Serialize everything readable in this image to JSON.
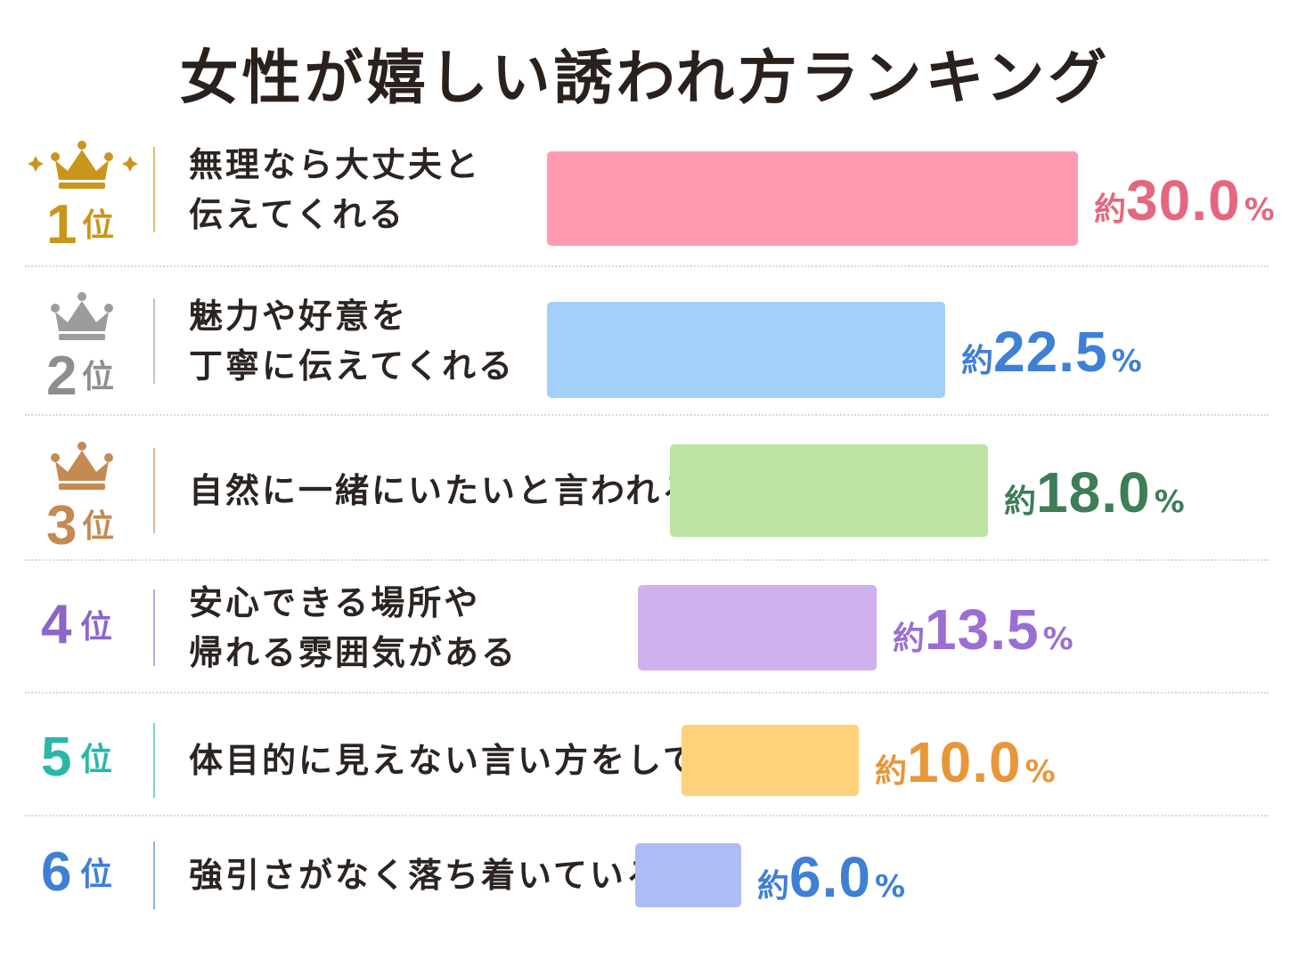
{
  "title": "女性が嬉しい誘われ方ランキング",
  "rank_suffix": "位",
  "value_prefix": "約",
  "value_unit": "%",
  "colors": {
    "gold": "#c9961c",
    "silver": "#9c9c9c",
    "bronze": "#c48a52"
  },
  "chart_data": {
    "type": "bar",
    "orientation": "horizontal",
    "title": "女性が嬉しい誘われ方ランキング",
    "categories": [
      "無理なら大丈夫と\n伝えてくれる",
      "魅力や好意を\n丁寧に伝えてくれる",
      "自然に一緒にいたいと言われる",
      "安心できる場所や\n帰れる雰囲気がある",
      "体目的に見えない言い方をしてくれる",
      "強引さがなく落ち着いている"
    ],
    "values": [
      30.0,
      22.5,
      18.0,
      13.5,
      10.0,
      6.0
    ],
    "value_labels": [
      "30.0",
      "22.5",
      "18.0",
      "13.5",
      "10.0",
      "6.0"
    ],
    "ranks": [
      "1",
      "2",
      "3",
      "4",
      "5",
      "6"
    ],
    "bar_colors": [
      "#ff9ab0",
      "#a3d0f9",
      "#bde4a4",
      "#cfb1ef",
      "#fdd27a",
      "#aebcf6"
    ],
    "rank_colors": [
      "#c9961c",
      "#8e8e8e",
      "#c48a52",
      "#8b66c9",
      "#2ab7a8",
      "#3f7fd6"
    ],
    "value_colors": [
      "#e4677f",
      "#3f7fd6",
      "#3d7d58",
      "#9a6fd1",
      "#e8963a",
      "#3f7fd6"
    ],
    "crowns": [
      "gold",
      "silver",
      "bronze",
      null,
      null,
      null
    ]
  }
}
